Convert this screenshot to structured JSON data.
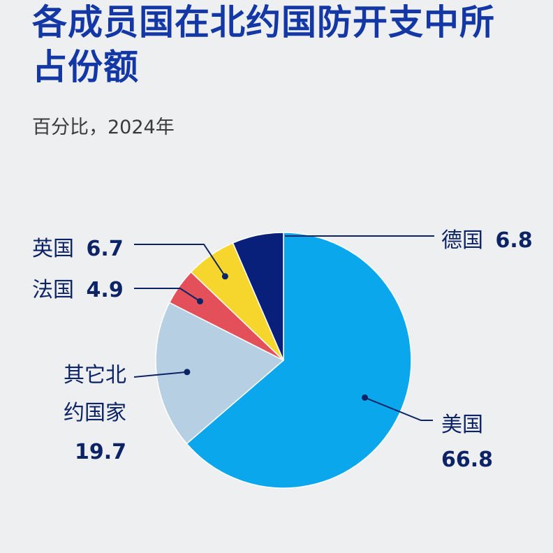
{
  "header": {
    "title_line1": "各成员国在北约国防开支中所",
    "title_line2": "占份额",
    "subtitle": "百分比，2024年"
  },
  "chart_data": {
    "type": "pie",
    "title": "各成员国在北约国防开支中所占份额",
    "subtitle": "百分比，2024年",
    "start": "12 o'clock",
    "direction": "clockwise",
    "slices": [
      {
        "key": "us",
        "name": "美国",
        "value": 66.8,
        "color": "#0aa7ec"
      },
      {
        "key": "other",
        "name": "其它北约国家",
        "name_lines": [
          "其它北",
          "约国家"
        ],
        "value": 19.7,
        "color": "#b6cfe2"
      },
      {
        "key": "fr",
        "name": "法国",
        "value": 4.9,
        "color": "#e4505a"
      },
      {
        "key": "uk",
        "name": "英国",
        "value": 6.7,
        "color": "#f6d62c"
      },
      {
        "key": "de",
        "name": "德国",
        "value": 6.8,
        "color": "#08207a"
      }
    ],
    "value_labels": {
      "us": "66.8",
      "other": "19.7",
      "fr": "4.9",
      "uk": "6.7",
      "de": "6.8"
    },
    "leader_color": "#0c2366"
  }
}
